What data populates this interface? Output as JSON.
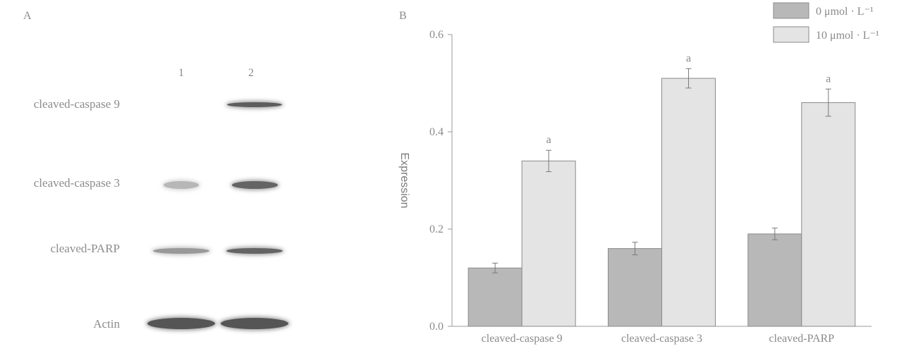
{
  "panel_a": {
    "letter": "A",
    "lanes": [
      "1",
      "2"
    ],
    "rows": [
      {
        "label": "cleaved-caspase 9",
        "bands": [
          0.0,
          0.95
        ]
      },
      {
        "label": "cleaved-caspase 3",
        "bands": [
          0.35,
          0.9
        ]
      },
      {
        "label": "cleaved-PARP",
        "bands": [
          0.55,
          0.9
        ]
      },
      {
        "label": "Actin",
        "bands": [
          1.0,
          1.0
        ]
      }
    ]
  },
  "panel_b": {
    "letter": "B"
  },
  "chart_data": {
    "type": "bar",
    "title": "",
    "xlabel": "",
    "ylabel": "Expression",
    "ylim": [
      0,
      0.6
    ],
    "yticks": [
      "0.0",
      "0.2",
      "0.4",
      "0.6"
    ],
    "categories": [
      "cleaved-caspase 9",
      "cleaved-caspase 3",
      "cleaved-PARP"
    ],
    "series": [
      {
        "name": "0 μmol · L⁻¹",
        "values": [
          0.12,
          0.16,
          0.19
        ],
        "errors": [
          0.01,
          0.013,
          0.012
        ],
        "color": "#b8b8b8"
      },
      {
        "name": "10 μmol · L⁻¹",
        "values": [
          0.34,
          0.51,
          0.46
        ],
        "errors": [
          0.022,
          0.02,
          0.028
        ],
        "color": "#e4e4e4"
      }
    ],
    "annotations": [
      "a",
      "a",
      "a"
    ],
    "legend_position": "top-right",
    "grid": false
  }
}
